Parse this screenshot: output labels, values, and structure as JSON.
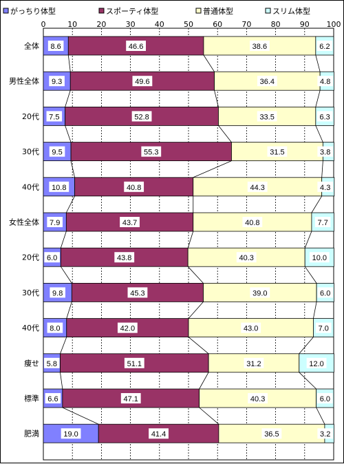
{
  "chart_data": {
    "type": "bar",
    "orientation": "horizontal",
    "stacked": "percent",
    "xlim": [
      0,
      100
    ],
    "x_ticks": [
      0,
      10,
      20,
      30,
      40,
      50,
      60,
      70,
      80,
      90,
      100
    ],
    "grid": true,
    "series_connector_lines": true,
    "legend_position": "top",
    "categories": [
      "全体",
      "男性全体",
      "20代",
      "30代",
      "40代",
      "女性全体",
      "20代",
      "30代",
      "40代",
      "痩せ",
      "標準",
      "肥満"
    ],
    "series": [
      {
        "name": "がっちり体型",
        "color": "#8080ff",
        "values": [
          8.6,
          9.3,
          7.5,
          9.5,
          10.8,
          7.9,
          6.0,
          9.8,
          8.0,
          5.8,
          6.6,
          19.0
        ]
      },
      {
        "name": "スポーティ体型",
        "color": "#993366",
        "values": [
          46.6,
          49.6,
          52.8,
          55.3,
          40.8,
          43.7,
          43.8,
          45.3,
          42.0,
          51.1,
          47.1,
          41.4
        ]
      },
      {
        "name": "普通体型",
        "color": "#ffffcc",
        "values": [
          38.6,
          36.4,
          33.5,
          31.5,
          44.3,
          40.8,
          40.3,
          39.0,
          43.0,
          31.2,
          40.3,
          36.5
        ]
      },
      {
        "name": "スリム体型",
        "color": "#ccffff",
        "values": [
          6.2,
          4.8,
          6.3,
          3.8,
          4.3,
          7.7,
          10.0,
          6.0,
          7.0,
          12.0,
          6.0,
          3.2
        ]
      }
    ]
  }
}
